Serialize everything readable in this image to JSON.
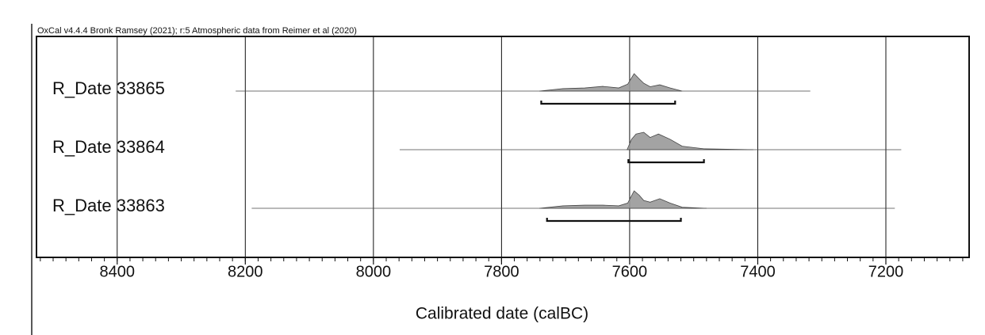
{
  "chart_data": {
    "type": "oxcal",
    "title": "OxCal v4.4.4 Bronk Ramsey (2021); r:5 Atmospheric data from Reimer et al (2020)",
    "xlabel": "Calibrated date (calBC)",
    "xlim": [
      8526,
      7070
    ],
    "xticks": [
      8400,
      8200,
      8000,
      7800,
      7600,
      7400,
      7200
    ],
    "grid": true,
    "color": "#999999",
    "series": [
      {
        "name": "R_Date 33865",
        "range": [
          8215,
          7318
        ],
        "hpd": [
          7738,
          7529
        ],
        "density_x": [
          7741,
          7704,
          7670,
          7642,
          7617,
          7603,
          7593,
          7585,
          7578,
          7568,
          7553,
          7537,
          7518
        ],
        "density": [
          0,
          0.14,
          0.18,
          0.27,
          0.18,
          0.4,
          1,
          0.7,
          0.45,
          0.25,
          0.36,
          0.18,
          0
        ]
      },
      {
        "name": "R_Date 33864",
        "range": [
          7959,
          7176
        ],
        "hpd": [
          7602,
          7484
        ],
        "density_x": [
          7604,
          7597,
          7590,
          7578,
          7568,
          7555,
          7537,
          7518,
          7484,
          7407
        ],
        "density": [
          0,
          0.6,
          0.9,
          1,
          0.7,
          0.9,
          0.6,
          0.2,
          0.05,
          0
        ]
      },
      {
        "name": "R_Date 33863",
        "range": [
          8190,
          7186
        ],
        "hpd": [
          7729,
          7520
        ],
        "density_x": [
          7741,
          7704,
          7670,
          7642,
          7617,
          7603,
          7593,
          7585,
          7578,
          7568,
          7553,
          7537,
          7518,
          7480
        ],
        "density": [
          0,
          0.14,
          0.18,
          0.18,
          0.14,
          0.3,
          1,
          0.75,
          0.45,
          0.35,
          0.55,
          0.3,
          0.06,
          0
        ]
      }
    ]
  }
}
